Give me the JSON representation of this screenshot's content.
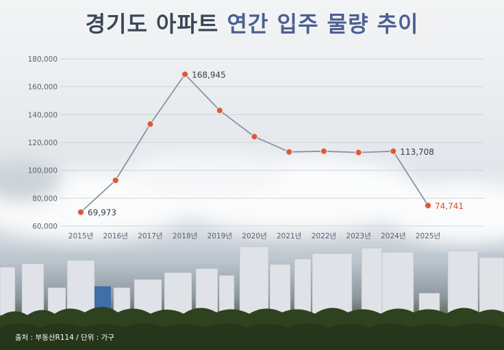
{
  "title": {
    "part1": "경기도 아파트",
    "part2": "연간 입주 물량 추이"
  },
  "source": "출처 : 부동산R114 / 단위 : 가구",
  "colors": {
    "title_dark": "#3b4656",
    "title_accent": "#4b5f93",
    "line": "#8893a3",
    "marker": "#d85a3a",
    "label_default": "#333d4a",
    "label_highlight": "#d9502c"
  },
  "chart_data": {
    "type": "line",
    "title": "경기도 아파트 연간 입주 물량 추이",
    "xlabel": "",
    "ylabel": "",
    "categories": [
      "2015년",
      "2016년",
      "2017년",
      "2018년",
      "2019년",
      "2020년",
      "2021년",
      "2022년",
      "2023년",
      "2024년",
      "2025년"
    ],
    "series": [
      {
        "values": [
          69973,
          92800,
          133200,
          168945,
          143000,
          124200,
          113200,
          113700,
          112800,
          113708,
          74741
        ]
      }
    ],
    "ylim": [
      60000,
      180000
    ],
    "yticks": [
      60000,
      80000,
      100000,
      120000,
      140000,
      160000,
      180000
    ],
    "ytick_labels": [
      "60,000",
      "80,000",
      "100,000",
      "120,000",
      "140,000",
      "160,000",
      "180,000"
    ],
    "data_labels": [
      {
        "index": 0,
        "text": "69,973",
        "highlight": false
      },
      {
        "index": 3,
        "text": "168,945",
        "highlight": false
      },
      {
        "index": 9,
        "text": "113,708",
        "highlight": false
      },
      {
        "index": 10,
        "text": "74,741",
        "highlight": true
      }
    ],
    "grid": true,
    "legend": "none"
  }
}
